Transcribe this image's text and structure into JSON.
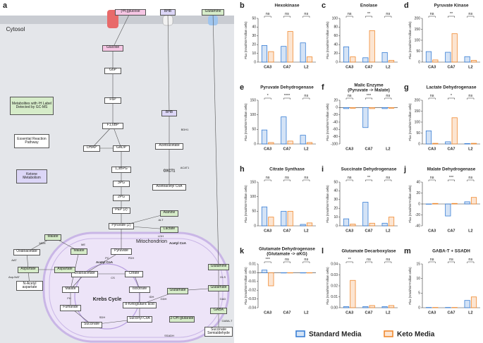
{
  "diagram": {
    "panel": "a",
    "nodes": [
      {
        "label": "[²H₇]glucose",
        "color": "#f6c6e4"
      },
      {
        "label": "BHB",
        "color": "#dcd6f7"
      },
      {
        "label": "Glutamine",
        "color": "#d6ecc9"
      },
      {
        "label": "Glucose",
        "color": "#f6c6e4"
      },
      {
        "label": "G6P",
        "color": "#ffffff"
      },
      {
        "label": "F6P",
        "color": "#ffffff"
      },
      {
        "label": "F1,6BP",
        "color": "#ffffff"
      },
      {
        "label": "DHAP",
        "color": "#ffffff"
      },
      {
        "label": "GADP",
        "color": "#ffffff"
      },
      {
        "label": "1,3BPG",
        "color": "#ffffff"
      },
      {
        "label": "3PG",
        "color": "#ffffff"
      },
      {
        "label": "2PG",
        "color": "#ffffff"
      },
      {
        "label": "PEP (2)",
        "color": "#ffffff"
      },
      {
        "label": "Pyruvate (2)",
        "color": "#ffffff"
      },
      {
        "label": "Alanine",
        "color": "#d6ecc9"
      },
      {
        "label": "Lactate",
        "color": "#d6ecc9"
      },
      {
        "label": "BHB",
        "color": "#dcd6f7"
      },
      {
        "label": "Acetoacetate",
        "color": "#ffffff"
      },
      {
        "label": "Acetoacetyl CoA",
        "color": "#ffffff"
      },
      {
        "label": "Pyruvate",
        "color": "#ffffff"
      },
      {
        "label": "Oxaloacetate",
        "color": "#ffffff"
      },
      {
        "label": "Citrate",
        "color": "#ffffff"
      },
      {
        "label": "Isocitrate",
        "color": "#ffffff"
      },
      {
        "label": "α-Ketoglutaric acid",
        "color": "#ffffff"
      },
      {
        "label": "Succinyl CoA",
        "color": "#ffffff"
      },
      {
        "label": "Succinate",
        "color": "#ffffff"
      },
      {
        "label": "Fumarate",
        "color": "#ffffff"
      },
      {
        "label": "Malate",
        "color": "#ffffff"
      },
      {
        "label": "Malate",
        "color": "#d6ecc9"
      },
      {
        "label": "Aspartate",
        "color": "#d6ecc9"
      },
      {
        "label": "Glutamate",
        "color": "#d6ecc9"
      },
      {
        "label": "2-OH-glutarate",
        "color": "#d6ecc9"
      },
      {
        "label": "Glutamine",
        "color": "#d6ecc9"
      },
      {
        "label": "Glutamate",
        "color": "#d6ecc9"
      },
      {
        "label": "GABA",
        "color": "#d6ecc9"
      },
      {
        "label": "Succinate Semialdehyde",
        "color": "#ffffff"
      },
      {
        "label": "Malate",
        "color": "#d6ecc9"
      },
      {
        "label": "Oxaloacetate",
        "color": "#ffffff"
      },
      {
        "label": "Aspartate",
        "color": "#d6ecc9"
      },
      {
        "label": "N-Acetyl aspartate",
        "color": "#ffffff"
      },
      {
        "label": "Metabolites with ²H Label Detected by GC-MS",
        "color": "#d6ecc9"
      },
      {
        "label": "Essential Reaction Pathway",
        "color": "#ffffff"
      },
      {
        "label": "Ketone Metabolism",
        "color": "#dcd6f7"
      }
    ],
    "texts": [
      "Cytosol",
      "Mitochondrion",
      "Krebs Cycle",
      "Acetyl CoA",
      "Acetyl CoA",
      "OXCT1",
      "ME",
      "MDH",
      "LDH",
      "ALT",
      "PC",
      "PDH",
      "CS",
      "IDH",
      "SDH",
      "FH",
      "GLS",
      "GAD",
      "GABA-T",
      "SSADH",
      "BDH1",
      "ACAT1",
      "GDH",
      "AAT",
      "Asp-NAT"
    ]
  },
  "chart_data": [
    {
      "type": "bar",
      "label": "b",
      "title": "Hexokinase",
      "ylabel": "Flux (nmol/min*million cells)",
      "categories": [
        "CA3",
        "CA7",
        "L2"
      ],
      "series": [
        {
          "name": "Standard Media",
          "color": "#3a7fd5",
          "values": [
            19,
            18,
            22
          ]
        },
        {
          "name": "Keto Media",
          "color": "#f08a30",
          "values": [
            12,
            35,
            6
          ]
        }
      ],
      "significance": [
        "ns",
        "ns",
        "ns"
      ],
      "ylim": [
        0,
        50
      ],
      "yticks": [
        0,
        10,
        20,
        30,
        40,
        50
      ]
    },
    {
      "type": "bar",
      "label": "c",
      "title": "Enolase",
      "ylabel": "Flux (nmol/min*million cells)",
      "categories": [
        "CA3",
        "CA7",
        "L2"
      ],
      "series": [
        {
          "name": "Standard Media",
          "color": "#3a7fd5",
          "values": [
            35,
            10,
            22
          ]
        },
        {
          "name": "Keto Media",
          "color": "#f08a30",
          "values": [
            12,
            72,
            4
          ]
        }
      ],
      "significance": [
        "ns",
        "**",
        "ns"
      ],
      "ylim": [
        0,
        100
      ],
      "yticks": [
        0,
        20,
        40,
        60,
        80,
        100
      ]
    },
    {
      "type": "bar",
      "label": "d",
      "title": "Pyruvate Kinase",
      "ylabel": "Flux (nmol/min*million cells)",
      "categories": [
        "CA3",
        "CA7",
        "L2"
      ],
      "series": [
        {
          "name": "Standard Media",
          "color": "#3a7fd5",
          "values": [
            48,
            45,
            25
          ]
        },
        {
          "name": "Keto Media",
          "color": "#f08a30",
          "values": [
            10,
            130,
            8
          ]
        }
      ],
      "significance": [
        "ns",
        "**",
        "ns"
      ],
      "ylim": [
        0,
        200
      ],
      "yticks": [
        0,
        50,
        100,
        150,
        200
      ]
    },
    {
      "type": "bar",
      "label": "e",
      "title": "Pyruvate Dehydrogenase",
      "ylabel": "Flux (nmol/min*million cells)",
      "categories": [
        "CA3",
        "CA7",
        "L2"
      ],
      "series": [
        {
          "name": "Standard Media",
          "color": "#3a7fd5",
          "values": [
            48,
            93,
            30
          ]
        },
        {
          "name": "Keto Media",
          "color": "#f08a30",
          "values": [
            5,
            10,
            5
          ]
        }
      ],
      "significance": [
        "*",
        "****",
        "ns"
      ],
      "ylim": [
        0,
        150
      ],
      "yticks": [
        0,
        50,
        100,
        150
      ]
    },
    {
      "type": "bar",
      "label": "f",
      "title": "Malic Enzyme",
      "subtitle": "(Pyruvate -> Malate)",
      "ylabel": "Flux (nmol/min*million cells)",
      "categories": [
        "CA3",
        "CA7",
        "L2"
      ],
      "series": [
        {
          "name": "Standard Media",
          "color": "#3a7fd5",
          "values": [
            -3,
            -55,
            -3
          ]
        },
        {
          "name": "Keto Media",
          "color": "#f08a30",
          "values": [
            -2,
            -3,
            -2
          ]
        }
      ],
      "significance": [
        "ns",
        "***",
        "ns"
      ],
      "ylim": [
        -100,
        20
      ],
      "yticks": [
        20,
        0,
        -20,
        -40,
        -60,
        -80,
        -100
      ]
    },
    {
      "type": "bar",
      "label": "g",
      "title": "Lactate Dehydrogenase",
      "ylabel": "Flux (nmol/min*million cells)",
      "categories": [
        "CA3",
        "CA7",
        "L2"
      ],
      "series": [
        {
          "name": "Standard Media",
          "color": "#3a7fd5",
          "values": [
            60,
            10,
            2
          ]
        },
        {
          "name": "Keto Media",
          "color": "#f08a30",
          "values": [
            3,
            120,
            3
          ]
        }
      ],
      "significance": [
        "ns",
        "*",
        "ns"
      ],
      "ylim": [
        0,
        200
      ],
      "yticks": [
        0,
        50,
        100,
        150,
        200
      ]
    },
    {
      "type": "bar",
      "label": "h",
      "title": "Citrate Synthase",
      "ylabel": "Flux (nmol/min*million cells)",
      "categories": [
        "CA3",
        "CA7",
        "L2"
      ],
      "series": [
        {
          "name": "Standard Media",
          "color": "#3a7fd5",
          "values": [
            65,
            50,
            5
          ]
        },
        {
          "name": "Keto Media",
          "color": "#f08a30",
          "values": [
            30,
            50,
            10
          ]
        }
      ],
      "significance": [
        "ns",
        "ns",
        "ns"
      ],
      "ylim": [
        0,
        150
      ],
      "yticks": [
        0,
        50,
        100,
        150
      ]
    },
    {
      "type": "bar",
      "label": "i",
      "title": "Succinate Dehydrogenase",
      "ylabel": "Flux (nmol/min*million cells)",
      "categories": [
        "CA3",
        "CA7",
        "L2"
      ],
      "series": [
        {
          "name": "Standard Media",
          "color": "#3a7fd5",
          "values": [
            8,
            27,
            3
          ]
        },
        {
          "name": "Keto Media",
          "color": "#f08a30",
          "values": [
            2,
            3,
            10
          ]
        }
      ],
      "significance": [
        "ns",
        "**",
        "ns"
      ],
      "ylim": [
        0,
        50
      ],
      "yticks": [
        0,
        10,
        20,
        30,
        40,
        50
      ]
    },
    {
      "type": "bar",
      "label": "j",
      "title": "Malate Dehydrogenase",
      "ylabel": "Flux (nmol/min*million cells)",
      "categories": [
        "CA3",
        "CA7",
        "L2"
      ],
      "series": [
        {
          "name": "Standard Media",
          "color": "#3a7fd5",
          "values": [
            0,
            -22,
            4
          ]
        },
        {
          "name": "Keto Media",
          "color": "#f08a30",
          "values": [
            1,
            1,
            12
          ]
        }
      ],
      "significance": [
        "ns",
        "***",
        "ns"
      ],
      "ylim": [
        -40,
        40
      ],
      "yticks": [
        -40,
        -20,
        0,
        20,
        40
      ]
    },
    {
      "type": "bar",
      "label": "k",
      "title": "Glutamate Dehydrogenase",
      "subtitle": "(Glutamate -> αKG)",
      "ylabel": "Flux (nmol/min*million cells)",
      "categories": [
        "CA3",
        "CA7",
        "L2"
      ],
      "series": [
        {
          "name": "Standard Media",
          "color": "#3a7fd5",
          "values": [
            0.003,
            0,
            0
          ]
        },
        {
          "name": "Keto Media",
          "color": "#f08a30",
          "values": [
            -0.015,
            0,
            0
          ]
        }
      ],
      "significance": [
        "***",
        "ns",
        "ns"
      ],
      "ylim": [
        -0.04,
        0.01
      ],
      "yticks": [
        0.01,
        {
          "value": 0,
          "label": "0.00"
        },
        -0.01,
        -0.02,
        -0.03,
        -0.04
      ]
    },
    {
      "type": "bar",
      "label": "l",
      "title": "Glutamate Decarboxylase",
      "ylabel": "Flux (nmol/min*million cells)",
      "categories": [
        "CA3",
        "CA7",
        "L2"
      ],
      "series": [
        {
          "name": "Standard Media",
          "color": "#3a7fd5",
          "values": [
            0.001,
            0.001,
            0.001
          ]
        },
        {
          "name": "Keto Media",
          "color": "#f08a30",
          "values": [
            0.025,
            0.002,
            0.002
          ]
        }
      ],
      "significance": [
        "**",
        "ns",
        "ns"
      ],
      "ylim": [
        0,
        0.04
      ],
      "yticks": [
        {
          "value": 0,
          "label": "0.00"
        },
        0.01,
        0.02,
        0.03,
        0.04
      ]
    },
    {
      "type": "bar",
      "label": "m",
      "title": "GABA-T + SSADH",
      "ylabel": "Flux (nmol/min*million cells)",
      "categories": [
        "CA3",
        "CA7",
        "L2"
      ],
      "series": [
        {
          "name": "Standard Media",
          "color": "#3a7fd5",
          "values": [
            0.1,
            0.1,
            2.5
          ]
        },
        {
          "name": "Keto Media",
          "color": "#f08a30",
          "values": [
            0.1,
            0.1,
            3.7
          ]
        }
      ],
      "significance": [
        "ns",
        "ns",
        "ns"
      ],
      "ylim": [
        0,
        15
      ],
      "yticks": [
        0,
        5,
        10,
        15
      ]
    }
  ]
}
